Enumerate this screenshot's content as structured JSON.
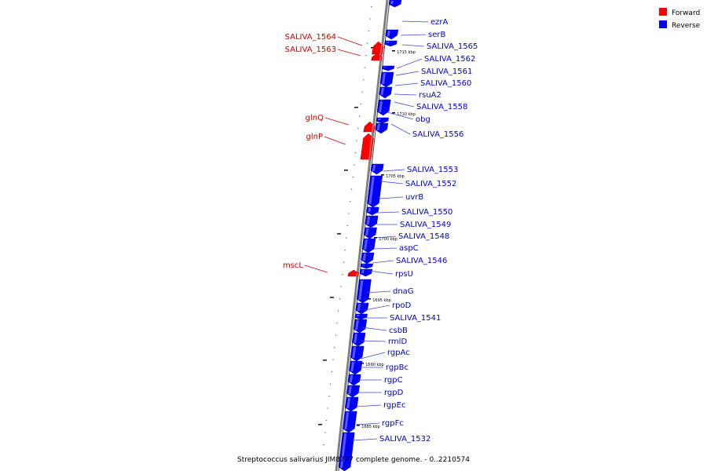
{
  "title": "Streptococcus salivarius JIM8777 complete genome. - 0..2210574",
  "legend": {
    "forward": {
      "label": "Forward",
      "color": "#ff0000"
    },
    "reverse": {
      "label": "Reverse",
      "color": "#0000ff"
    }
  },
  "colors": {
    "forward_fill": "#ff0000",
    "reverse_fill": "#0000ff",
    "forward_text": "#cc0000",
    "reverse_text": "#0000cc",
    "backbone": "#808080"
  },
  "ticks": [
    "1715 kbp",
    "1710 kbp",
    "1705 kbp",
    "1700 kbp",
    "1695 kbp",
    "1690 kbp",
    "1685 kbp"
  ],
  "genes": [
    {
      "name": "ezrA",
      "strand": "reverse"
    },
    {
      "name": "serB",
      "strand": "reverse"
    },
    {
      "name": "SALIVA_1564",
      "strand": "forward"
    },
    {
      "name": "SALIVA_1565",
      "strand": "reverse"
    },
    {
      "name": "SALIVA_1563",
      "strand": "forward"
    },
    {
      "name": "SALIVA_1562",
      "strand": "reverse"
    },
    {
      "name": "SALIVA_1561",
      "strand": "reverse"
    },
    {
      "name": "SALIVA_1560",
      "strand": "reverse"
    },
    {
      "name": "rsuA2",
      "strand": "reverse"
    },
    {
      "name": "SALIVA_1558",
      "strand": "reverse"
    },
    {
      "name": "obg",
      "strand": "reverse"
    },
    {
      "name": "glnQ",
      "strand": "forward"
    },
    {
      "name": "SALIVA_1556",
      "strand": "reverse"
    },
    {
      "name": "glnP",
      "strand": "forward"
    },
    {
      "name": "SALIVA_1553",
      "strand": "reverse"
    },
    {
      "name": "SALIVA_1552",
      "strand": "reverse"
    },
    {
      "name": "uvrB",
      "strand": "reverse"
    },
    {
      "name": "SALIVA_1550",
      "strand": "reverse"
    },
    {
      "name": "SALIVA_1549",
      "strand": "reverse"
    },
    {
      "name": "SALIVA_1548",
      "strand": "reverse"
    },
    {
      "name": "aspC",
      "strand": "reverse"
    },
    {
      "name": "SALIVA_1546",
      "strand": "reverse"
    },
    {
      "name": "mscL",
      "strand": "forward"
    },
    {
      "name": "rpsU",
      "strand": "reverse"
    },
    {
      "name": "dnaG",
      "strand": "reverse"
    },
    {
      "name": "rpoD",
      "strand": "reverse"
    },
    {
      "name": "SALIVA_1541",
      "strand": "reverse"
    },
    {
      "name": "csbB",
      "strand": "reverse"
    },
    {
      "name": "rmlD",
      "strand": "reverse"
    },
    {
      "name": "rgpAc",
      "strand": "reverse"
    },
    {
      "name": "rgpBc",
      "strand": "reverse"
    },
    {
      "name": "rgpC",
      "strand": "reverse"
    },
    {
      "name": "rgpD",
      "strand": "reverse"
    },
    {
      "name": "rgpEc",
      "strand": "reverse"
    },
    {
      "name": "rgpFc",
      "strand": "reverse"
    },
    {
      "name": "SALIVA_1532",
      "strand": "reverse"
    }
  ]
}
